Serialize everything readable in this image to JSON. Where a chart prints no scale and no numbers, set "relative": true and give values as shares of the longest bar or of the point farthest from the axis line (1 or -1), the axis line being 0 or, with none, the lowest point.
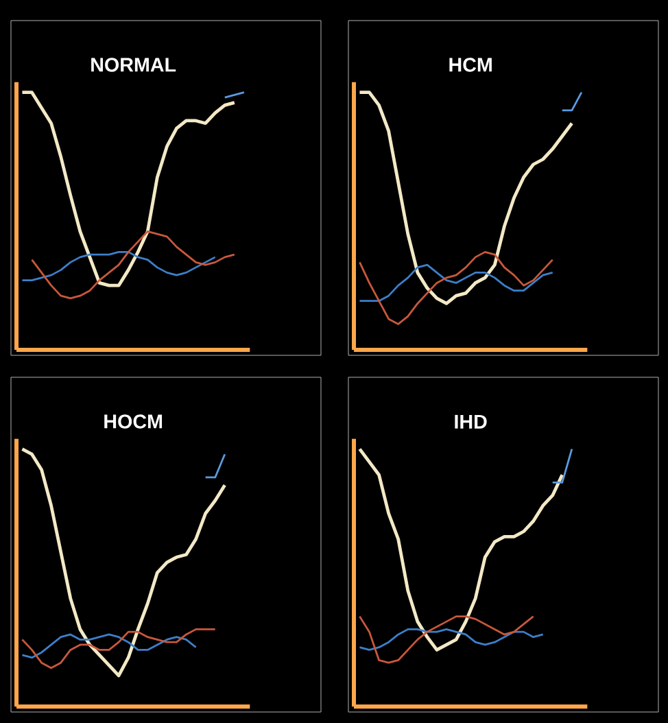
{
  "chart_data": [
    {
      "type": "line",
      "title": "NORMAL",
      "relative": true,
      "categories": [
        null,
        null,
        null,
        null,
        null,
        null,
        null,
        null,
        null,
        null,
        null,
        null,
        null,
        null,
        null,
        null,
        null,
        null,
        null,
        null,
        null,
        null,
        null,
        null
      ],
      "series": [
        {
          "color": "#f3e9c6",
          "values": [
            1.0,
            1.0,
            0.94,
            0.88,
            0.75,
            0.6,
            0.46,
            0.36,
            0.26,
            0.25,
            0.25,
            0.31,
            0.38,
            0.46,
            0.67,
            0.79,
            0.86,
            0.89,
            0.89,
            0.88,
            0.92,
            0.95,
            0.96,
            null
          ]
        },
        {
          "color": "#3d7fc9",
          "values": [
            0.27,
            0.27,
            0.28,
            0.29,
            0.31,
            0.34,
            0.36,
            0.37,
            0.37,
            0.37,
            0.38,
            0.38,
            0.36,
            0.35,
            0.32,
            0.3,
            0.29,
            0.3,
            0.32,
            0.34,
            0.36,
            null,
            null,
            null
          ]
        },
        {
          "color": "#5a9be0",
          "values": [
            null,
            null,
            null,
            null,
            null,
            null,
            null,
            null,
            null,
            null,
            null,
            null,
            null,
            null,
            null,
            null,
            null,
            null,
            null,
            null,
            null,
            0.98,
            0.99,
            1.0
          ]
        },
        {
          "color": "#c9583c",
          "values": [
            null,
            0.35,
            0.3,
            0.25,
            0.21,
            0.2,
            0.21,
            0.23,
            0.27,
            0.3,
            0.33,
            0.38,
            0.42,
            0.46,
            0.45,
            0.44,
            0.4,
            0.37,
            0.34,
            0.33,
            0.34,
            0.36,
            0.37,
            null
          ]
        }
      ]
    },
    {
      "type": "line",
      "title": "HCM",
      "relative": true,
      "categories": [
        null,
        null,
        null,
        null,
        null,
        null,
        null,
        null,
        null,
        null,
        null,
        null,
        null,
        null,
        null,
        null,
        null,
        null,
        null,
        null,
        null,
        null,
        null,
        null
      ],
      "series": [
        {
          "color": "#f3e9c6",
          "values": [
            1.0,
            1.0,
            0.95,
            0.85,
            0.65,
            0.45,
            0.3,
            0.24,
            0.2,
            0.18,
            0.21,
            0.22,
            0.26,
            0.28,
            0.33,
            0.48,
            0.59,
            0.67,
            0.72,
            0.74,
            0.78,
            0.83,
            0.88,
            null
          ]
        },
        {
          "color": "#3d7fc9",
          "values": [
            0.19,
            0.19,
            0.19,
            0.21,
            0.25,
            0.28,
            0.32,
            0.33,
            0.3,
            0.27,
            0.26,
            0.28,
            0.3,
            0.3,
            0.28,
            0.25,
            0.23,
            0.23,
            0.26,
            0.29,
            0.3,
            null,
            null,
            null
          ]
        },
        {
          "color": "#5a9be0",
          "values": [
            null,
            null,
            null,
            null,
            null,
            null,
            null,
            null,
            null,
            null,
            null,
            null,
            null,
            null,
            null,
            null,
            null,
            null,
            null,
            null,
            null,
            0.93,
            0.93,
            1.0
          ]
        },
        {
          "color": "#c9583c",
          "values": [
            0.34,
            0.26,
            0.19,
            0.12,
            0.1,
            0.13,
            0.18,
            0.22,
            0.26,
            0.28,
            0.29,
            0.32,
            0.36,
            0.38,
            0.37,
            0.32,
            0.29,
            0.25,
            0.27,
            0.31,
            0.35,
            null,
            null,
            null
          ]
        }
      ]
    },
    {
      "type": "line",
      "title": "HOCM",
      "relative": true,
      "categories": [
        null,
        null,
        null,
        null,
        null,
        null,
        null,
        null,
        null,
        null,
        null,
        null,
        null,
        null,
        null,
        null,
        null,
        null,
        null,
        null,
        null,
        null,
        null,
        null
      ],
      "series": [
        {
          "color": "#f3e9c6",
          "values": [
            1.0,
            0.98,
            0.92,
            0.78,
            0.6,
            0.42,
            0.3,
            0.24,
            0.2,
            0.16,
            0.12,
            0.19,
            0.3,
            0.4,
            0.52,
            0.56,
            0.58,
            0.59,
            0.65,
            0.75,
            0.8,
            0.86,
            null,
            null
          ]
        },
        {
          "color": "#3d7fc9",
          "values": [
            0.2,
            0.19,
            0.21,
            0.24,
            0.27,
            0.28,
            0.26,
            0.26,
            0.27,
            0.28,
            0.27,
            0.25,
            0.22,
            0.22,
            0.24,
            0.26,
            0.27,
            0.26,
            0.23,
            null,
            null,
            null,
            null,
            null
          ]
        },
        {
          "color": "#5a9be0",
          "values": [
            null,
            null,
            null,
            null,
            null,
            null,
            null,
            null,
            null,
            null,
            null,
            null,
            null,
            null,
            null,
            null,
            null,
            null,
            null,
            0.89,
            0.89,
            0.98,
            null,
            null
          ]
        },
        {
          "color": "#c9583c",
          "values": [
            0.26,
            0.22,
            0.17,
            0.15,
            0.17,
            0.22,
            0.24,
            0.24,
            0.22,
            0.22,
            0.25,
            0.29,
            0.29,
            0.27,
            0.26,
            0.25,
            0.25,
            0.28,
            0.3,
            0.3,
            0.3,
            null,
            null,
            null
          ]
        }
      ]
    },
    {
      "type": "line",
      "title": "IHD",
      "relative": true,
      "categories": [
        null,
        null,
        null,
        null,
        null,
        null,
        null,
        null,
        null,
        null,
        null,
        null,
        null,
        null,
        null,
        null,
        null,
        null,
        null,
        null,
        null,
        null,
        null,
        null
      ],
      "series": [
        {
          "color": "#f3e9c6",
          "values": [
            1.0,
            0.95,
            0.9,
            0.75,
            0.65,
            0.45,
            0.33,
            0.27,
            0.22,
            0.24,
            0.26,
            0.33,
            0.42,
            0.58,
            0.64,
            0.66,
            0.66,
            0.68,
            0.72,
            0.78,
            0.82,
            0.9,
            null,
            null
          ]
        },
        {
          "color": "#3d7fc9",
          "values": [
            0.23,
            0.22,
            0.23,
            0.25,
            0.28,
            0.3,
            0.3,
            0.29,
            0.29,
            0.3,
            0.29,
            0.28,
            0.25,
            0.24,
            0.25,
            0.27,
            0.29,
            0.29,
            0.27,
            0.28,
            null,
            null,
            null,
            null
          ]
        },
        {
          "color": "#5a9be0",
          "values": [
            null,
            null,
            null,
            null,
            null,
            null,
            null,
            null,
            null,
            null,
            null,
            null,
            null,
            null,
            null,
            null,
            null,
            null,
            null,
            null,
            0.87,
            0.87,
            1.0,
            null
          ]
        },
        {
          "color": "#c9583c",
          "values": [
            0.35,
            0.29,
            0.18,
            0.17,
            0.18,
            0.22,
            0.26,
            0.29,
            0.31,
            0.33,
            0.35,
            0.35,
            0.34,
            0.32,
            0.3,
            0.28,
            0.29,
            0.32,
            0.35,
            null,
            null,
            null,
            null,
            null
          ]
        }
      ]
    }
  ]
}
